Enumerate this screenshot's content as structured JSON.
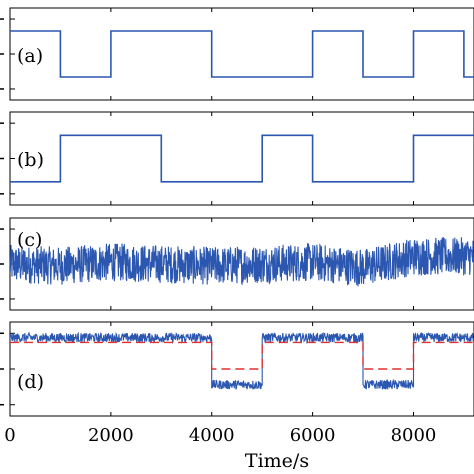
{
  "xlabel": "Time/s",
  "chart_data": [
    {
      "type": "line",
      "panel_label": "(a)",
      "xlim": [
        0,
        9200
      ],
      "ylim": [
        -0.5,
        1.5
      ],
      "series": [
        {
          "color": "#2b57b0",
          "x": [
            0,
            1000,
            1000,
            2000,
            2000,
            4000,
            4000,
            6000,
            6000,
            7000,
            7000,
            8000,
            8000,
            9000,
            9000,
            9200
          ],
          "y": [
            1,
            1,
            0,
            0,
            1,
            1,
            0,
            0,
            1,
            1,
            0,
            0,
            1,
            1,
            0,
            0
          ]
        }
      ]
    },
    {
      "type": "line",
      "panel_label": "(b)",
      "xlim": [
        0,
        9200
      ],
      "ylim": [
        -0.5,
        1.5
      ],
      "series": [
        {
          "color": "#2b57b0",
          "x": [
            0,
            1000,
            1000,
            3000,
            3000,
            5000,
            5000,
            6000,
            6000,
            8000,
            8000,
            9200
          ],
          "y": [
            0,
            0,
            1,
            1,
            0,
            0,
            1,
            1,
            0,
            0,
            1,
            1
          ]
        }
      ]
    },
    {
      "type": "line",
      "panel_label": "(c)",
      "xlim": [
        0,
        9200
      ],
      "ylim": [
        -1.2,
        1.2
      ],
      "series": [
        {
          "color": "#2b57b0",
          "style": "noisy band",
          "x": [
            0,
            1000,
            2000,
            3000,
            4000,
            5000,
            6000,
            7000,
            8000,
            9200
          ],
          "y": [
            0.0,
            -0.05,
            0.05,
            0.0,
            -0.05,
            0.0,
            0.05,
            -0.1,
            0.2,
            0.2
          ],
          "amplitude": 0.5
        }
      ]
    },
    {
      "type": "line",
      "panel_label": "(d)",
      "xlim": [
        0,
        9200
      ],
      "ylim": [
        -1.5,
        1.5
      ],
      "series": [
        {
          "color": "#2b57b0",
          "style": "noisy signal",
          "x": [
            0,
            4000,
            4000,
            5000,
            5000,
            7000,
            7000,
            8000,
            8000,
            9200
          ],
          "y": [
            1,
            1,
            -0.5,
            -0.5,
            1,
            1,
            -0.5,
            -0.5,
            1,
            1
          ],
          "amplitude": 0.15
        },
        {
          "color": "#e03030",
          "style": "dashed",
          "x": [
            0,
            4000,
            4000,
            5000,
            5000,
            7000,
            7000,
            8000,
            8000,
            9200
          ],
          "y": [
            0.85,
            0.85,
            0.0,
            0.0,
            0.85,
            0.85,
            0.0,
            0.0,
            0.85,
            0.85
          ]
        }
      ]
    }
  ],
  "x_ticks": [
    0,
    2000,
    4000,
    6000,
    8000
  ]
}
